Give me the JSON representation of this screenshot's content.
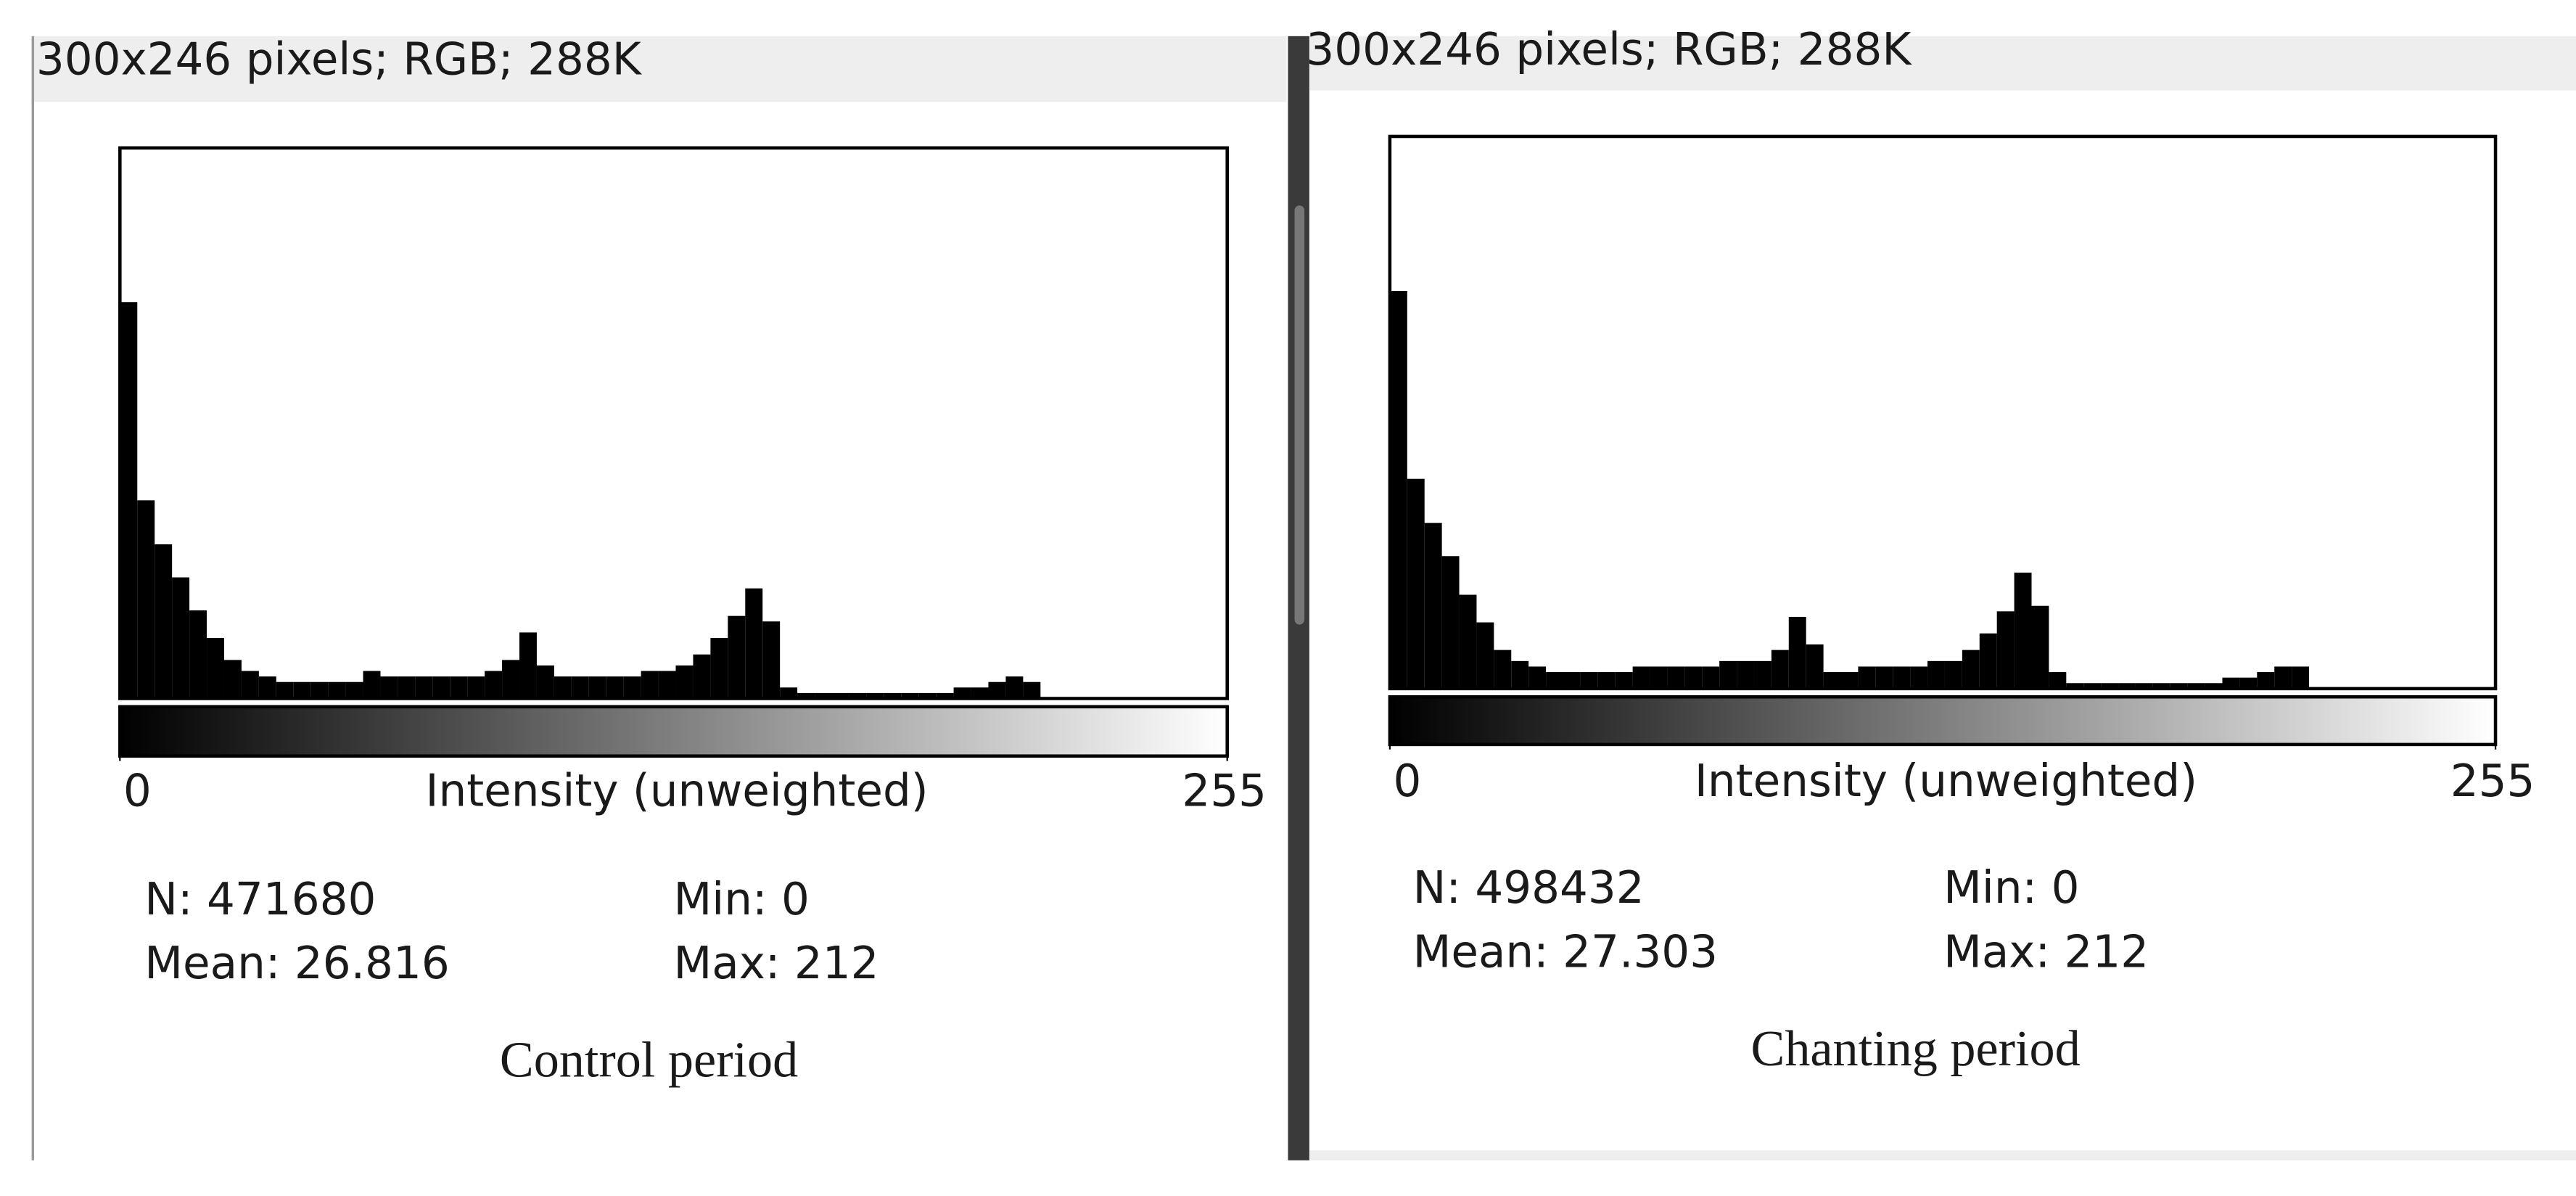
{
  "panels": [
    {
      "header": "300x246 pixels; RGB; 288K",
      "histogram": {
        "type": "histogram",
        "bins": [
          0,
          4,
          8,
          12,
          16,
          20,
          24,
          28,
          32,
          36,
          40,
          44,
          48,
          52,
          56,
          60,
          64,
          68,
          72,
          76,
          80,
          84,
          88,
          92,
          96,
          100,
          104,
          108,
          112,
          116,
          120,
          124,
          128,
          132,
          136,
          140,
          144,
          148,
          152,
          156,
          160,
          164,
          168,
          172,
          176,
          180,
          184,
          188,
          192,
          196,
          200,
          204,
          208,
          212,
          216,
          220,
          224,
          228,
          232,
          236,
          240,
          244,
          248,
          252,
          255
        ],
        "counts": [
          72,
          36,
          28,
          22,
          16,
          11,
          7,
          5,
          4,
          3,
          3,
          3,
          3,
          3,
          5,
          4,
          4,
          4,
          4,
          4,
          4,
          5,
          7,
          12,
          6,
          4,
          4,
          4,
          4,
          4,
          5,
          5,
          6,
          8,
          11,
          15,
          20,
          14,
          2,
          1,
          1,
          1,
          1,
          1,
          1,
          1,
          1,
          1,
          2,
          2,
          3,
          4,
          3,
          0,
          0,
          0,
          0,
          0,
          0,
          0,
          0,
          0,
          0,
          0
        ],
        "xlim": [
          0,
          255
        ],
        "ylim": [
          0,
          100
        ],
        "xticks": [
          0,
          255
        ],
        "xlabel": "Intensity (unweighted)",
        "color": "#000000"
      },
      "stats": {
        "n": "N: 471680",
        "min": "Min: 0",
        "mean": "Mean: 26.816",
        "max": "Max: 212"
      },
      "caption": "Control period"
    },
    {
      "header": "300x246 pixels; RGB; 288K",
      "histogram": {
        "type": "histogram",
        "bins": [
          0,
          4,
          8,
          12,
          16,
          20,
          24,
          28,
          32,
          36,
          40,
          44,
          48,
          52,
          56,
          60,
          64,
          68,
          72,
          76,
          80,
          84,
          88,
          92,
          96,
          100,
          104,
          108,
          112,
          116,
          120,
          124,
          128,
          132,
          136,
          140,
          144,
          148,
          152,
          156,
          160,
          164,
          168,
          172,
          176,
          180,
          184,
          188,
          192,
          196,
          200,
          204,
          208,
          212,
          216,
          220,
          224,
          228,
          232,
          236,
          240,
          244,
          248,
          252,
          255
        ],
        "counts": [
          72,
          38,
          30,
          24,
          17,
          12,
          7,
          5,
          4,
          3,
          3,
          3,
          3,
          3,
          4,
          4,
          4,
          4,
          4,
          5,
          5,
          5,
          7,
          13,
          8,
          3,
          3,
          4,
          4,
          4,
          4,
          5,
          5,
          7,
          10,
          14,
          21,
          15,
          3,
          1,
          1,
          1,
          1,
          1,
          1,
          1,
          1,
          1,
          2,
          2,
          3,
          4,
          4,
          0,
          0,
          0,
          0,
          0,
          0,
          0,
          0,
          0,
          0,
          0
        ],
        "xlim": [
          0,
          255
        ],
        "ylim": [
          0,
          100
        ],
        "xticks": [
          0,
          255
        ],
        "xlabel": "Intensity (unweighted)",
        "color": "#000000"
      },
      "stats": {
        "n": "N: 498432",
        "min": "Min: 0",
        "mean": "Mean: 27.303",
        "max": "Max: 212"
      },
      "caption": "Chanting period"
    }
  ]
}
